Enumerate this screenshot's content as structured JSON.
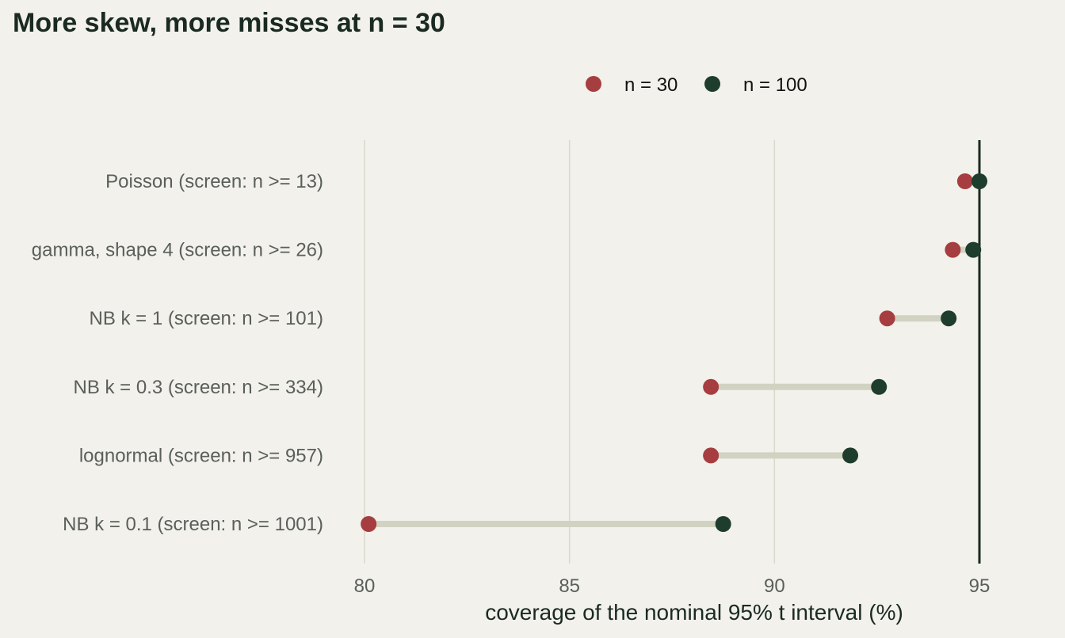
{
  "chart_data": {
    "type": "dumbbell",
    "title": "More skew, more misses at n = 30",
    "xlabel": "coverage of the nominal 95% t interval (%)",
    "xlim": [
      80,
      95
    ],
    "xticks": [
      "80",
      "85",
      "90",
      "95"
    ],
    "reference_line": 95,
    "grid": "vertical",
    "legend_position": "top",
    "categories": [
      "Poisson (screen: n >= 13)",
      "gamma, shape 4 (screen: n >= 26)",
      "NB k = 1 (screen: n >= 101)",
      "NB k = 0.3 (screen: n >= 334)",
      "lognormal (screen: n >= 957)",
      "NB k = 0.1 (screen: n >= 1001)"
    ],
    "series": [
      {
        "name": "n = 30",
        "color": "#a63d40",
        "values": [
          94.65,
          94.35,
          92.75,
          88.45,
          88.45,
          80.1
        ]
      },
      {
        "name": "n = 100",
        "color": "#1e3d2c",
        "values": [
          95.0,
          94.85,
          94.25,
          92.55,
          91.85,
          88.75
        ]
      }
    ],
    "connector_color": "#d2d2c2",
    "gridline_color": "#d9d8cb",
    "reference_line_color": "#1a2a22"
  }
}
